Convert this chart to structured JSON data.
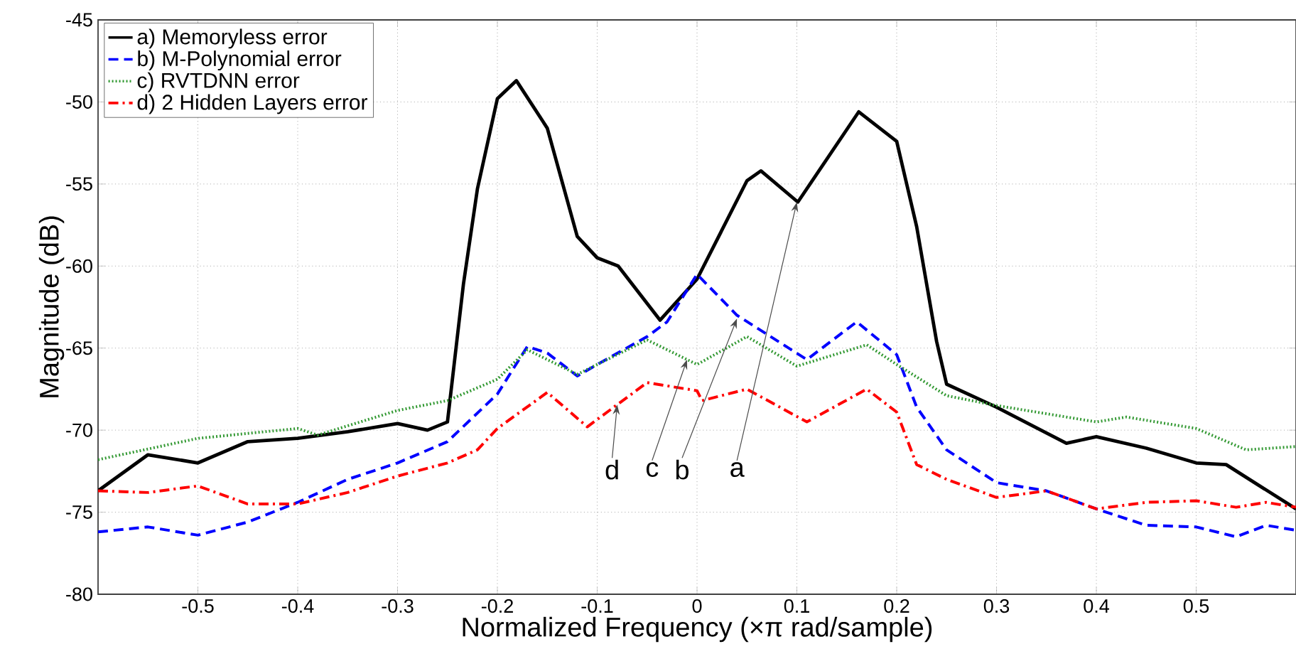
{
  "chart_data": {
    "type": "line",
    "xlabel": "Normalized Frequency  (×π rad/sample)",
    "ylabel": "Magnitude (dB)",
    "xlim": [
      -0.6,
      0.6
    ],
    "ylim": [
      -80,
      -45
    ],
    "xticks": [
      -0.5,
      -0.4,
      -0.3,
      -0.2,
      -0.1,
      0,
      0.1,
      0.2,
      0.3,
      0.4,
      0.5
    ],
    "yticks": [
      -80,
      -75,
      -70,
      -65,
      -60,
      -55,
      -50,
      -45
    ],
    "grid": true,
    "legend": "top left",
    "marker": "none",
    "series": [
      {
        "name": "a) Memoryless error",
        "color": "#000000",
        "line_style": "solid",
        "x": [
          -0.6,
          -0.55,
          -0.5,
          -0.45,
          -0.4,
          -0.35,
          -0.3,
          -0.27,
          -0.25,
          -0.234,
          -0.22,
          -0.2,
          -0.181,
          -0.15,
          -0.12,
          -0.1,
          -0.079,
          -0.037,
          0,
          0.05,
          0.064,
          0.101,
          0.162,
          0.2,
          0.22,
          0.24,
          0.25,
          0.3,
          0.37,
          0.4,
          0.45,
          0.5,
          0.53,
          0.6
        ],
        "values": [
          -73.7,
          -71.5,
          -72.0,
          -70.7,
          -70.5,
          -70.1,
          -69.6,
          -70.0,
          -69.5,
          -61.1,
          -55.3,
          -49.8,
          -48.7,
          -51.6,
          -58.2,
          -59.5,
          -60.0,
          -63.3,
          -60.8,
          -54.8,
          -54.2,
          -56.1,
          -50.6,
          -52.4,
          -57.6,
          -64.6,
          -67.2,
          -68.6,
          -70.8,
          -70.4,
          -71.1,
          -72.0,
          -72.1,
          -74.8
        ]
      },
      {
        "name": "b) M-Polynomial error",
        "color": "#0000ff",
        "line_style": "dashed",
        "x": [
          -0.6,
          -0.55,
          -0.5,
          -0.45,
          -0.4,
          -0.35,
          -0.3,
          -0.25,
          -0.2,
          -0.17,
          -0.15,
          -0.12,
          -0.1,
          -0.05,
          -0.03,
          0,
          0.04,
          0.11,
          0.16,
          0.2,
          0.22,
          0.25,
          0.3,
          0.35,
          0.4,
          0.45,
          0.5,
          0.54,
          0.57,
          0.6
        ],
        "values": [
          -76.2,
          -75.9,
          -76.4,
          -75.6,
          -74.4,
          -73.0,
          -72.0,
          -70.7,
          -67.8,
          -64.9,
          -65.3,
          -66.7,
          -66.0,
          -64.3,
          -63.4,
          -60.5,
          -63.0,
          -65.7,
          -63.4,
          -65.4,
          -68.6,
          -71.2,
          -73.2,
          -73.7,
          -74.8,
          -75.8,
          -75.9,
          -76.5,
          -75.8,
          -76.1
        ]
      },
      {
        "name": "c) RVTDNN error",
        "color": "#339933",
        "line_style": "dotted",
        "x": [
          -0.6,
          -0.5,
          -0.4,
          -0.38,
          -0.3,
          -0.25,
          -0.2,
          -0.17,
          -0.12,
          -0.05,
          -0.02,
          0,
          0.05,
          0.1,
          0.17,
          0.2,
          0.25,
          0.3,
          0.4,
          0.43,
          0.5,
          0.55,
          0.6
        ],
        "values": [
          -71.8,
          -70.5,
          -69.9,
          -70.3,
          -68.8,
          -68.2,
          -66.9,
          -65.1,
          -66.6,
          -64.5,
          -65.4,
          -66.0,
          -64.3,
          -66.1,
          -64.8,
          -66.0,
          -67.9,
          -68.5,
          -69.5,
          -69.2,
          -69.9,
          -71.2,
          -71.0
        ]
      },
      {
        "name": "d) 2 Hidden Layers error",
        "color": "#ff0000",
        "line_style": "dashdot",
        "x": [
          -0.6,
          -0.55,
          -0.5,
          -0.45,
          -0.4,
          -0.35,
          -0.3,
          -0.25,
          -0.22,
          -0.2,
          -0.15,
          -0.11,
          -0.05,
          0,
          0.005,
          0.05,
          0.11,
          0.17,
          0.2,
          0.22,
          0.25,
          0.3,
          0.35,
          0.4,
          0.45,
          0.5,
          0.54,
          0.57,
          0.6
        ],
        "values": [
          -73.7,
          -73.8,
          -73.4,
          -74.5,
          -74.5,
          -73.8,
          -72.8,
          -72.0,
          -71.2,
          -69.9,
          -67.7,
          -69.8,
          -67.1,
          -67.6,
          -68.2,
          -67.5,
          -69.5,
          -67.5,
          -68.9,
          -72.1,
          -73.0,
          -74.1,
          -73.7,
          -74.8,
          -74.4,
          -74.3,
          -74.7,
          -74.4,
          -74.7
        ]
      }
    ],
    "annotations": [
      {
        "text": "a",
        "x": 0.1,
        "y": -56.1
      },
      {
        "text": "b",
        "x": 0.04,
        "y": -63.2
      },
      {
        "text": "c",
        "x": -0.01,
        "y": -65.7
      },
      {
        "text": "d",
        "x": -0.08,
        "y": -68.45
      }
    ]
  }
}
